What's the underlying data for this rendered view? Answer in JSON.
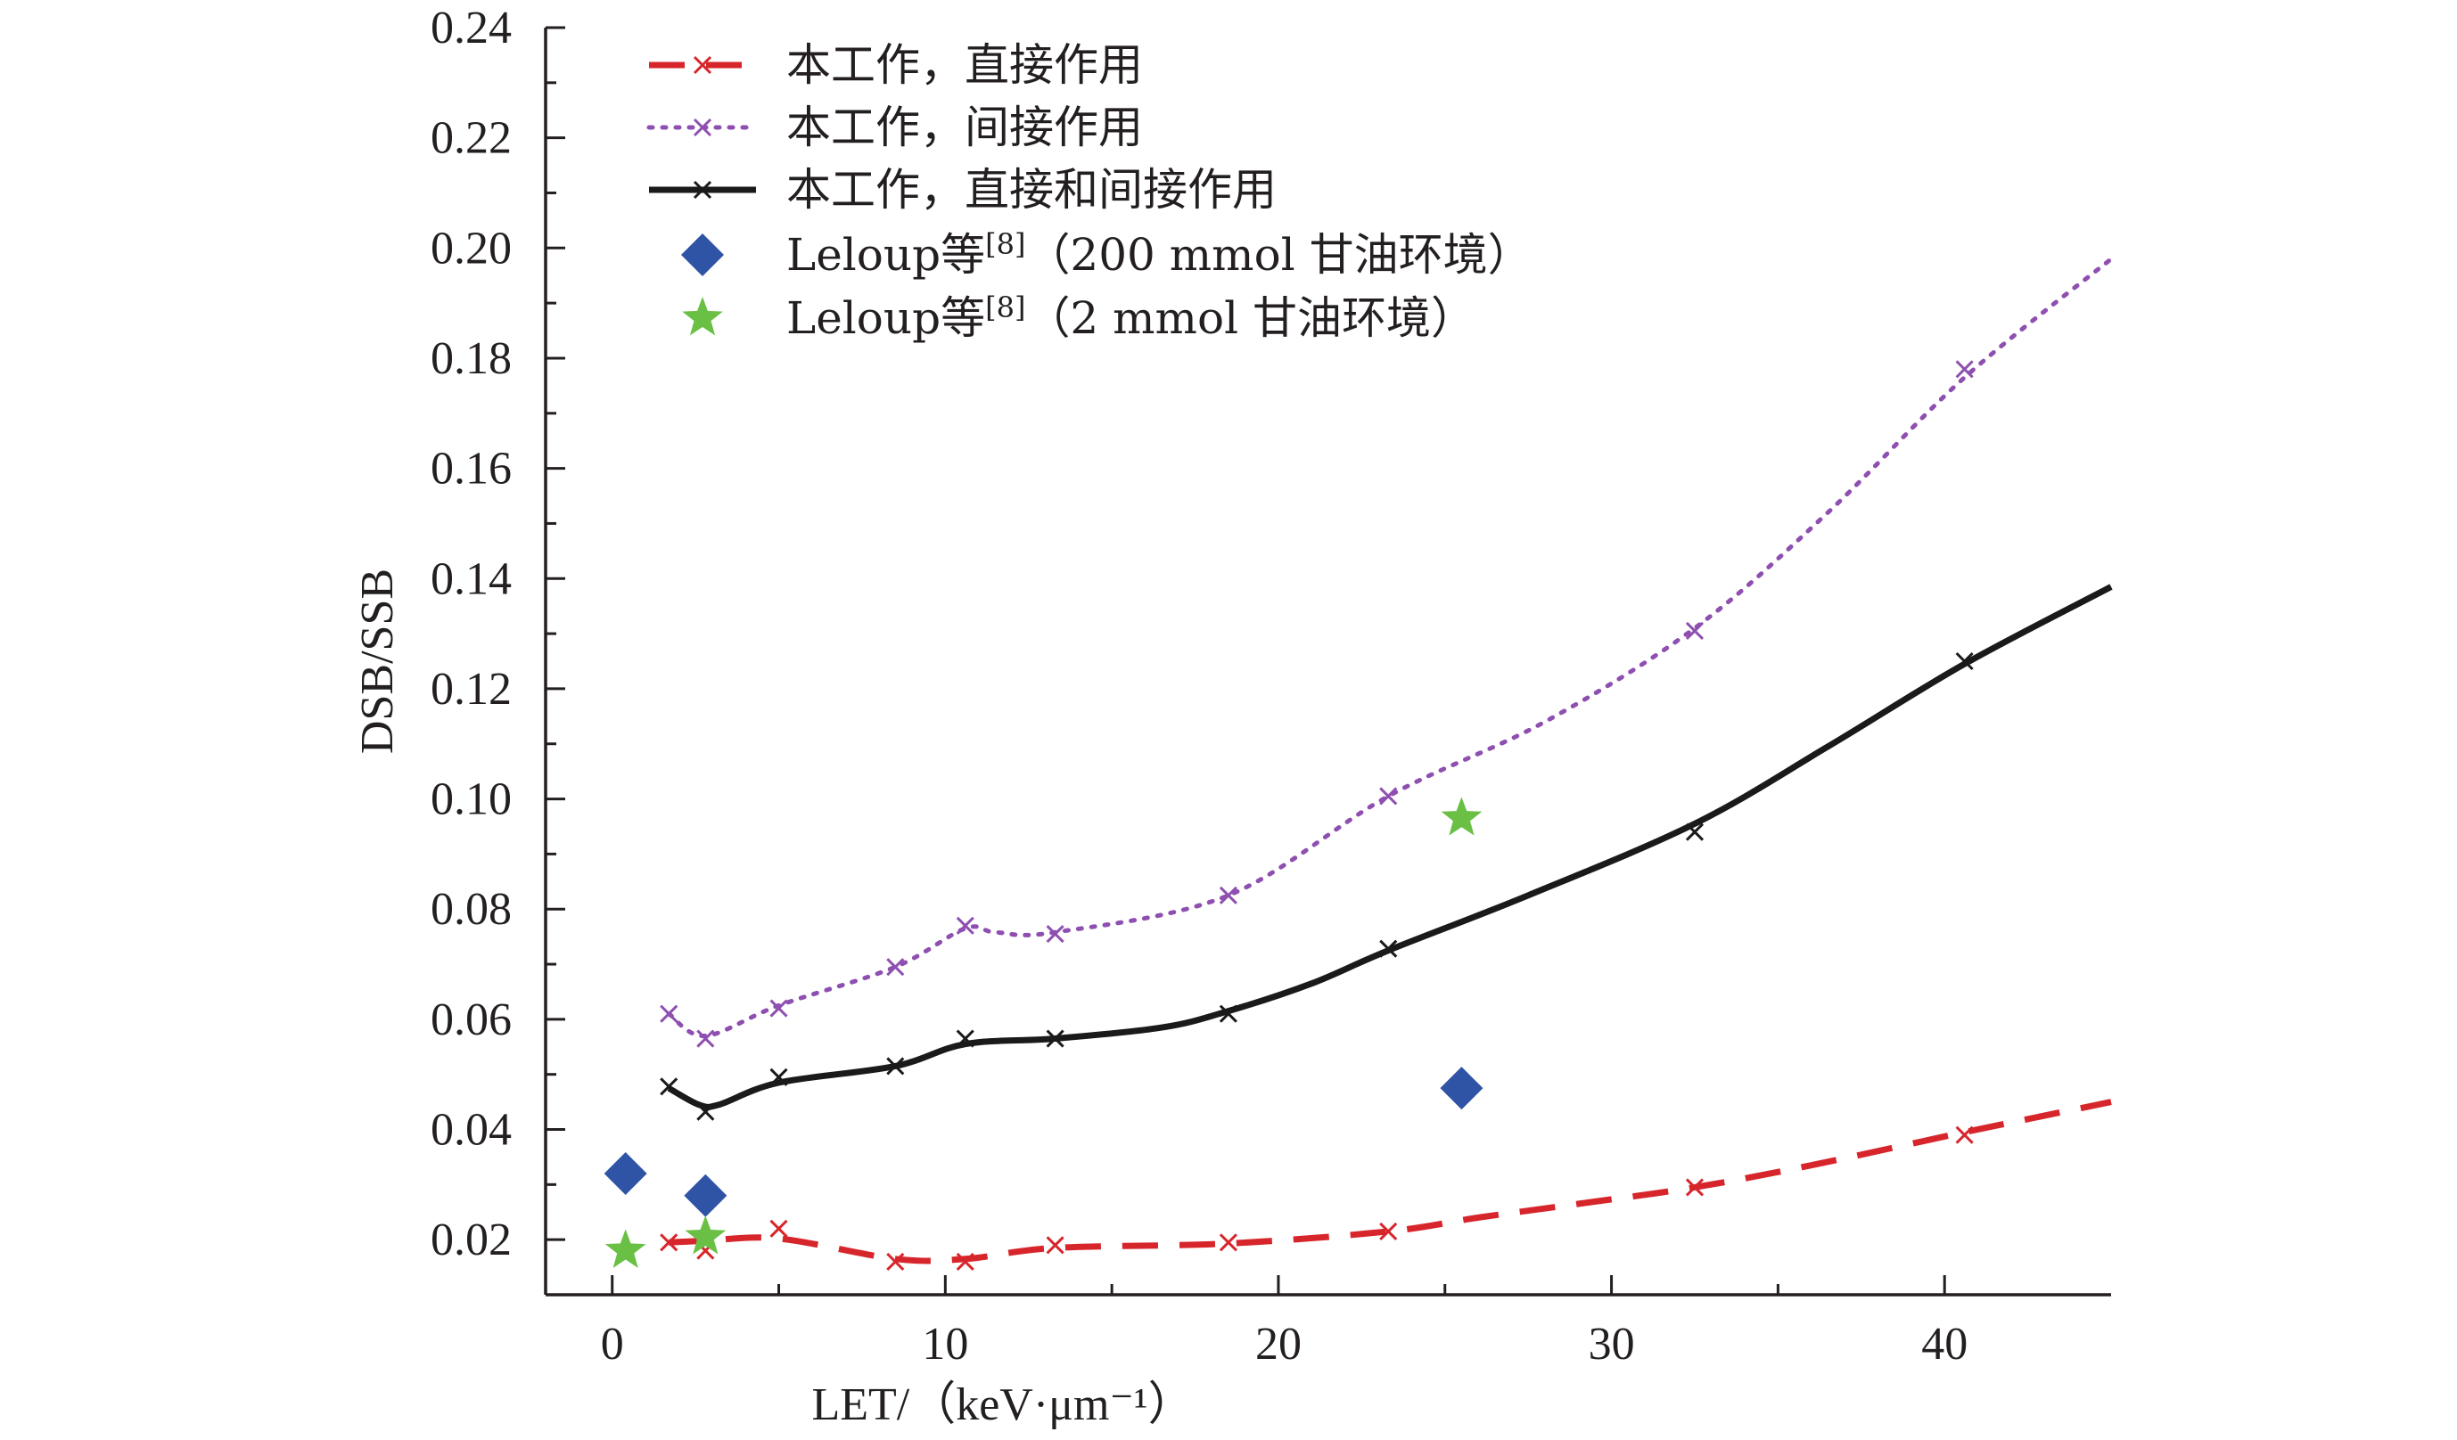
{
  "chart_data": {
    "type": "line",
    "xlabel": "LET/（keV·μm⁻¹）",
    "ylabel": "DSB/SSB",
    "xlim": [
      -2,
      45
    ],
    "ylim": [
      0.01,
      0.24
    ],
    "x_ticks": [
      0,
      10,
      20,
      30,
      40
    ],
    "x_tick_labels": [
      "0",
      "10",
      "20",
      "30",
      "40"
    ],
    "y_ticks": [
      0.02,
      0.04,
      0.06,
      0.08,
      0.1,
      0.12,
      0.14,
      0.16,
      0.18,
      0.2,
      0.22,
      0.24
    ],
    "y_tick_labels": [
      "0.02",
      "0.04",
      "0.06",
      "0.08",
      "0.10",
      "0.12",
      "0.14",
      "0.16",
      "0.18",
      "0.20",
      "0.22",
      "0.24"
    ],
    "legend_position": "top-left",
    "series": [
      {
        "name": "本工作，直接作用",
        "style": "dashed",
        "color": "#d7262b",
        "marker": "x",
        "x": [
          1.7,
          2.8,
          5.0,
          8.5,
          10.6,
          13.3,
          18.5,
          23.3,
          32.5,
          40.6
        ],
        "y": [
          0.0195,
          0.018,
          0.022,
          0.016,
          0.016,
          0.019,
          0.0195,
          0.0215,
          0.0295,
          0.039
        ],
        "curve_x": [
          1.7,
          2.8,
          5.0,
          8.5,
          10.6,
          13.3,
          18.5,
          23.3,
          26.0,
          29.0,
          32.5,
          36.0,
          40.6,
          45.0
        ],
        "curve_y": [
          0.0195,
          0.0198,
          0.0202,
          0.0165,
          0.0165,
          0.0185,
          0.0193,
          0.0215,
          0.024,
          0.0265,
          0.0295,
          0.0335,
          0.0395,
          0.045
        ]
      },
      {
        "name": "本工作，间接作用",
        "style": "dotted",
        "color": "#8e4fb0",
        "marker": "x",
        "x": [
          1.7,
          2.8,
          5.0,
          8.5,
          10.6,
          13.3,
          18.5,
          23.3,
          32.5,
          40.6
        ],
        "y": [
          0.061,
          0.0565,
          0.062,
          0.0695,
          0.077,
          0.0755,
          0.0825,
          0.1005,
          0.1305,
          0.178
        ],
        "curve_x": [
          1.7,
          2.8,
          5.0,
          8.5,
          10.6,
          11.5,
          13.3,
          18.5,
          23.3,
          28.0,
          32.5,
          36.5,
          40.6,
          45.0
        ],
        "curve_y": [
          0.061,
          0.057,
          0.0625,
          0.0695,
          0.0765,
          0.0758,
          0.0758,
          0.0825,
          0.1005,
          0.114,
          0.131,
          0.152,
          0.1765,
          0.198
        ]
      },
      {
        "name": "本工作，直接和间接作用",
        "style": "solid",
        "color": "#1a1a1a",
        "marker": "x",
        "x": [
          1.7,
          2.8,
          5.0,
          8.5,
          10.6,
          13.3,
          18.5,
          23.3,
          32.5,
          40.6
        ],
        "y": [
          0.0478,
          0.0432,
          0.0495,
          0.0515,
          0.0565,
          0.0565,
          0.061,
          0.0728,
          0.094,
          0.125
        ],
        "curve_x": [
          1.7,
          2.6,
          3.2,
          5.0,
          8.5,
          10.6,
          13.3,
          16.5,
          18.5,
          21.0,
          23.3,
          27.5,
          32.5,
          36.5,
          40.6,
          45.0
        ],
        "curve_y": [
          0.0475,
          0.0445,
          0.0445,
          0.0485,
          0.0515,
          0.0555,
          0.0565,
          0.0585,
          0.0615,
          0.0665,
          0.0725,
          0.0825,
          0.0955,
          0.1095,
          0.1245,
          0.1385
        ]
      },
      {
        "name": "Leloup等[8]（200 mmol 甘油环境）",
        "style": "scatter",
        "color": "#2f53a5",
        "marker": "diamond",
        "x": [
          0.4,
          2.8,
          25.5
        ],
        "y": [
          0.032,
          0.028,
          0.0475
        ]
      },
      {
        "name": "Leloup等[8]（2 mmol 甘油环境）",
        "style": "scatter",
        "color": "#6abf45",
        "marker": "star",
        "x": [
          0.4,
          2.8,
          25.5
        ],
        "y": [
          0.018,
          0.0205,
          0.0965
        ]
      }
    ]
  }
}
